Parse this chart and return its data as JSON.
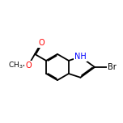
{
  "background_color": "#ffffff",
  "bond_color": "#000000",
  "atom_colors": {
    "O": "#ff0000",
    "N": "#0000ff",
    "Br": "#000000",
    "C": "#000000"
  },
  "figsize": [
    1.52,
    1.52
  ],
  "dpi": 100,
  "bond_lw": 1.3,
  "font_size": 7.0
}
